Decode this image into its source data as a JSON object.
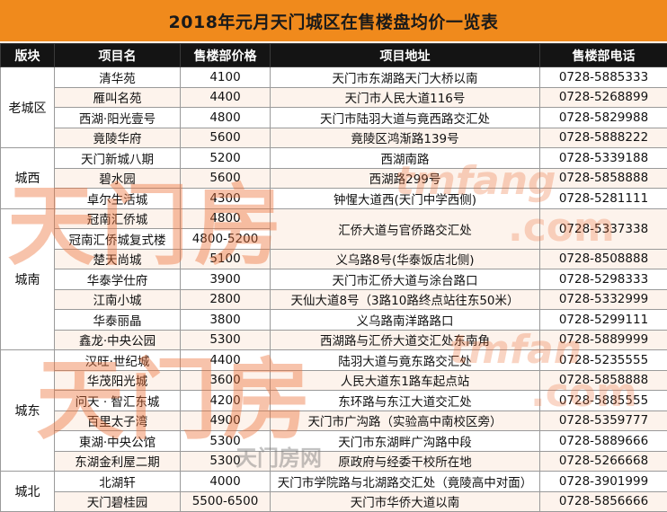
{
  "title": "2018年元月天门城区在售楼盘均价一览表",
  "headers": {
    "district": "版块",
    "project": "项目名",
    "price": "售楼部价格",
    "address": "项目地址",
    "phone": "售楼部电话"
  },
  "groups": [
    {
      "district": "老城区",
      "rows": [
        {
          "project": "清华苑",
          "price": "4100",
          "address": "天门市东湖路天门大桥以南",
          "phone": "0728-5885333"
        },
        {
          "project": "雁叫名苑",
          "price": "4400",
          "address": "天门市人民大道116号",
          "phone": "0728-5268899"
        },
        {
          "project": "西湖·阳光壹号",
          "price": "4800",
          "address": "天门市陆羽大道与竟西路交汇处",
          "phone": "0728-5829988"
        },
        {
          "project": "竟陵华府",
          "price": "5600",
          "address": "竟陵区鸿渐路139号",
          "phone": "0728-5888222"
        }
      ]
    },
    {
      "district": "城西",
      "rows": [
        {
          "project": "天门新城八期",
          "price": "5200",
          "address": "西湖南路",
          "phone": "0728-5339188"
        },
        {
          "project": "碧水园",
          "price": "5600",
          "address": "西湖路299号",
          "phone": "0728-5858888"
        },
        {
          "project": "卓尔生活城",
          "price": "4300",
          "address": "钟惺大道西(天门中学西侧)",
          "phone": "0728-5281111"
        }
      ]
    },
    {
      "district": "城南",
      "rows": [
        {
          "project": "冠南汇侨城",
          "price": "4800",
          "address": "汇侨大道与官侨路交汇处",
          "phone": "0728-5337338",
          "address_rowspan": 2,
          "phone_rowspan": 2
        },
        {
          "project": "冠南汇侨城复式楼",
          "price": "4800-5200"
        },
        {
          "project": "楚天尚城",
          "price": "5100",
          "address": "义乌路8号(华泰饭店北侧)",
          "phone": "0728-8508888"
        },
        {
          "project": "华泰学仕府",
          "price": "3900",
          "address": "天门市汇侨大道与涂台路口",
          "phone": "0728-5298333"
        },
        {
          "project": "江南小城",
          "price": "2800",
          "address": "天仙大道8号（3路10路终点站往东50米）",
          "phone": "0728-5332999"
        },
        {
          "project": "华泰丽晶",
          "price": "3800",
          "address": "义乌路南洋路路口",
          "phone": "0728-5299111"
        },
        {
          "project": "鑫龙·中央公园",
          "price": "5300",
          "address": "西湖路与汇侨大道交汇处东南角",
          "phone": "0728-5889999"
        }
      ]
    },
    {
      "district": "城东",
      "rows": [
        {
          "project": "汉旺·世纪城",
          "price": "4400",
          "address": "陆羽大道与竟东路交汇处",
          "phone": "0728-5235555"
        },
        {
          "project": "华茂阳光城",
          "price": "3600",
          "address": "人民大道东1路车起点站",
          "phone": "0728-5858888"
        },
        {
          "project": "问天 · 智汇东城",
          "price": "4200",
          "address": "东环路与东江大道交汇处",
          "phone": "0728-5885555"
        },
        {
          "project": "百里太子湾",
          "price": "4900",
          "address": "天门市广沟路（实验高中南校区旁）",
          "phone": "0728-5359777"
        },
        {
          "project": "東湖·中央公馆",
          "price": "5300",
          "address": "天门市东湖畔广沟路中段",
          "phone": "0728-5889666"
        },
        {
          "project": "东湖金利屋二期",
          "price": "5300",
          "address": "原政府与经委干校所在地",
          "phone": "0728-5266668"
        }
      ]
    },
    {
      "district": "城北",
      "rows": [
        {
          "project": "北湖轩",
          "price": "4000",
          "address": "天门市学院路与北湖路交汇处（竟陵高中对面）",
          "phone": "0728-3901999"
        },
        {
          "project": "天门碧桂园",
          "price": "5500-6500",
          "address": "天门市华侨大道以南",
          "phone": "0728-5856666"
        }
      ]
    }
  ],
  "watermark": {
    "large_1": "天门房",
    "latin_1": "tmfang",
    "com_1": ".com",
    "large_2": "天门房",
    "latin_2": "tmfan",
    "com_2": ".com",
    "small": "天门房网"
  }
}
